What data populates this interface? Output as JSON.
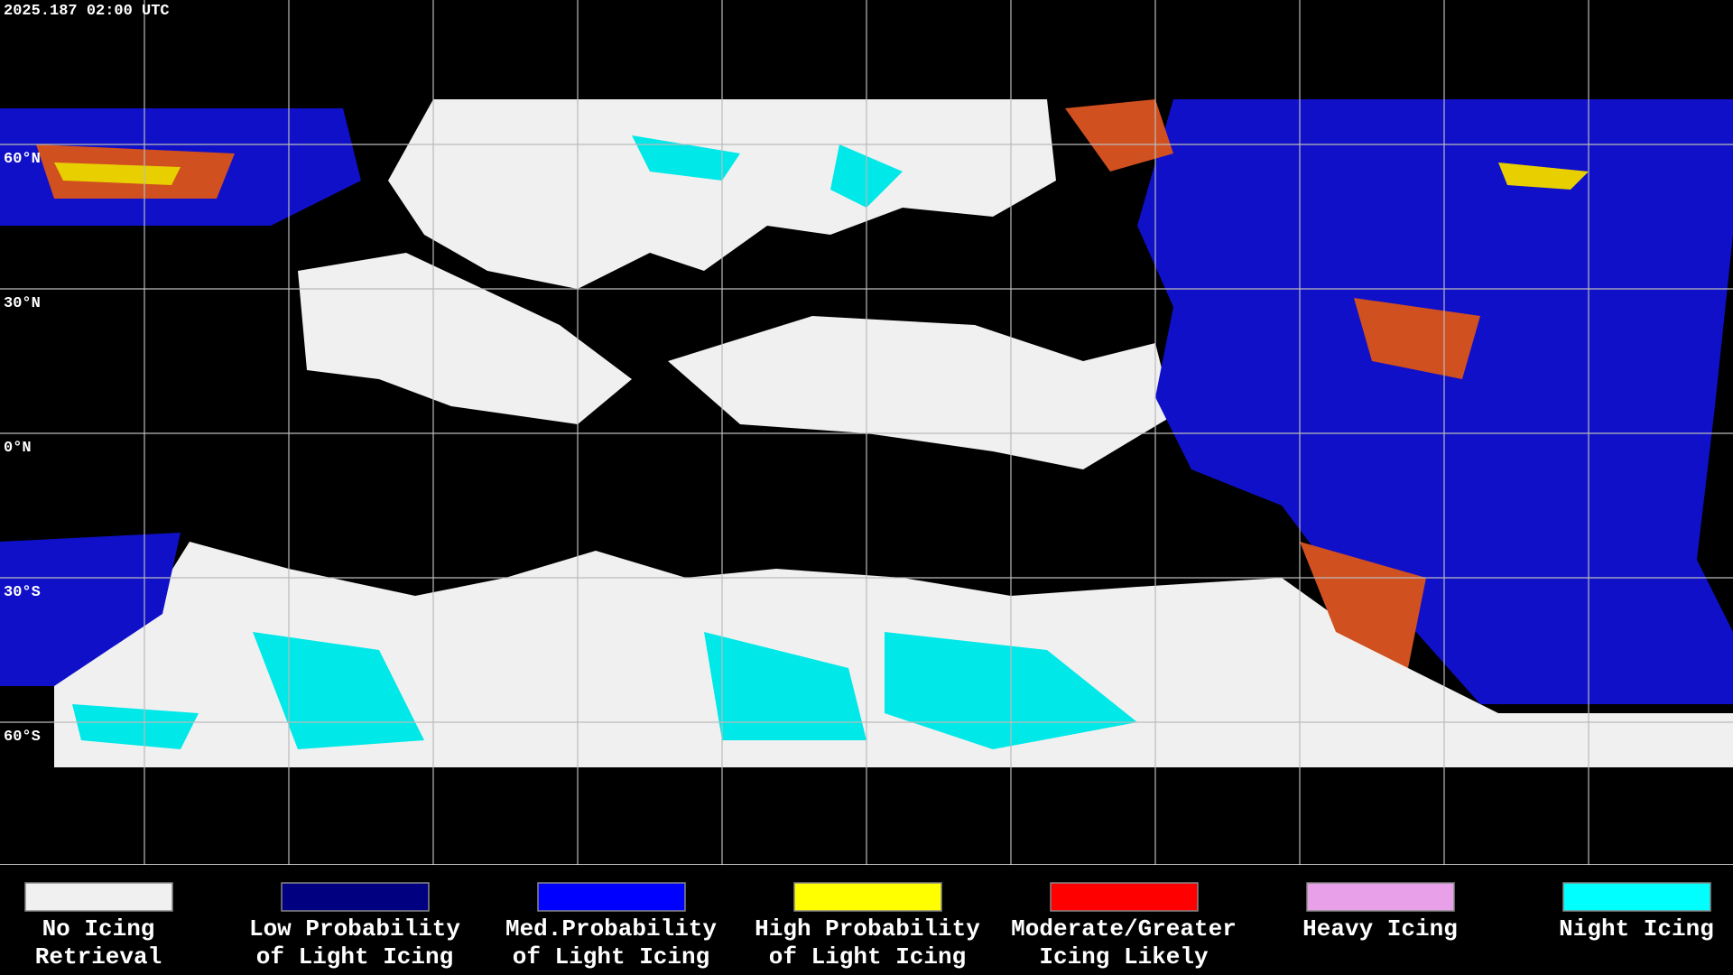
{
  "header": {
    "timestamp": "2025.187 02:00 UTC"
  },
  "grid": {
    "lat_labels": [
      "60°N",
      "30°N",
      "0°N",
      "30°S",
      "60°S"
    ]
  },
  "legend": {
    "items": [
      {
        "lines": [
          "No Icing",
          "Retrieval"
        ],
        "color": "#f0f0f0"
      },
      {
        "lines": [
          "Low Probability",
          "of Light Icing"
        ],
        "color": "#000080"
      },
      {
        "lines": [
          "Med.Probability",
          "of Light Icing"
        ],
        "color": "#0000ff"
      },
      {
        "lines": [
          "High Probability",
          "of Light Icing"
        ],
        "color": "#ffff00"
      },
      {
        "lines": [
          "Moderate/Greater",
          "Icing Likely"
        ],
        "color": "#ff0000"
      },
      {
        "lines": [
          "Heavy Icing"
        ],
        "color": "#e8a0e8"
      },
      {
        "lines": [
          "Night Icing"
        ],
        "color": "#00ffff"
      }
    ]
  }
}
